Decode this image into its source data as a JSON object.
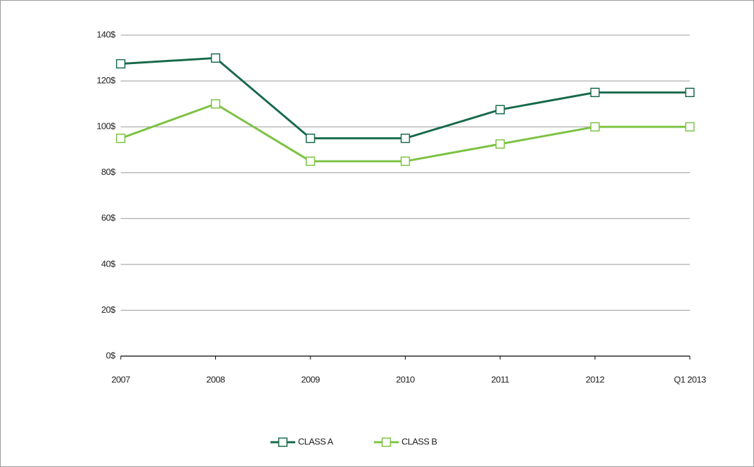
{
  "chart_data": {
    "type": "line",
    "categories": [
      "2007",
      "2008",
      "2009",
      "2010",
      "2011",
      "2012",
      "Q1 2013"
    ],
    "series": [
      {
        "name": "CLASS A",
        "color": "#17694a",
        "values": [
          127.5,
          130,
          95,
          95,
          107.5,
          115,
          115
        ]
      },
      {
        "name": "CLASS B",
        "color": "#7cc242",
        "values": [
          95,
          110,
          85,
          85,
          92.5,
          100,
          100
        ]
      }
    ],
    "ylim": [
      0,
      140
    ],
    "yticks": [
      {
        "value": 0,
        "label": "0$"
      },
      {
        "value": 20,
        "label": "20$"
      },
      {
        "value": 40,
        "label": "40$"
      },
      {
        "value": 60,
        "label": "60$"
      },
      {
        "value": 80,
        "label": "80$"
      },
      {
        "value": 100,
        "label": "100$"
      },
      {
        "value": 120,
        "label": "120$"
      },
      {
        "value": 140,
        "label": "140$"
      }
    ],
    "grid": true,
    "legend": "bottom"
  }
}
